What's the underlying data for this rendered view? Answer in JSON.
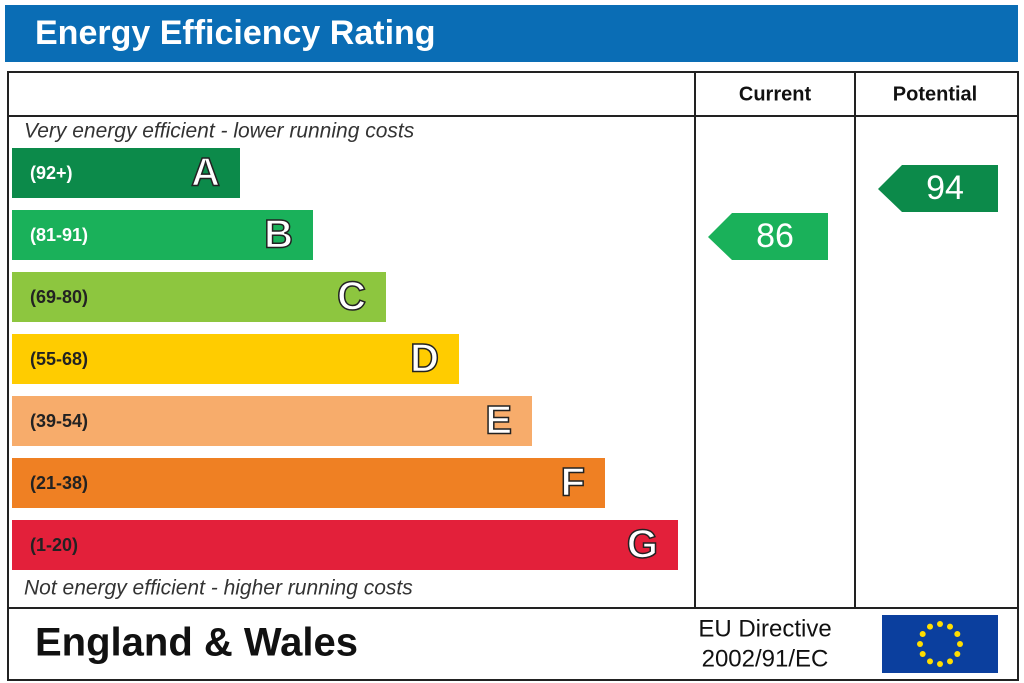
{
  "header": {
    "title": "Energy Efficiency Rating"
  },
  "columns": {
    "current": "Current",
    "potential": "Potential"
  },
  "notes": {
    "top": "Very energy efficient - lower running costs",
    "bottom": "Not energy efficient - higher running costs"
  },
  "bands": [
    {
      "range": "(92+)",
      "letter": "A",
      "color": "#0c8a4a"
    },
    {
      "range": "(81-91)",
      "letter": "B",
      "color": "#1ab15a"
    },
    {
      "range": "(69-80)",
      "letter": "C",
      "color": "#8dc63f"
    },
    {
      "range": "(55-68)",
      "letter": "D",
      "color": "#ffcc00"
    },
    {
      "range": "(39-54)",
      "letter": "E",
      "color": "#f7ac6b"
    },
    {
      "range": "(21-38)",
      "letter": "F",
      "color": "#ef8023"
    },
    {
      "range": "(1-20)",
      "letter": "G",
      "color": "#e3203a"
    }
  ],
  "ratings": {
    "current": {
      "value": "86",
      "color": "#1ab15a"
    },
    "potential": {
      "value": "94",
      "color": "#0c8a4a"
    }
  },
  "footer": {
    "region": "England & Wales",
    "directive_title": "EU Directive",
    "directive_number": "2002/91/EC"
  }
}
